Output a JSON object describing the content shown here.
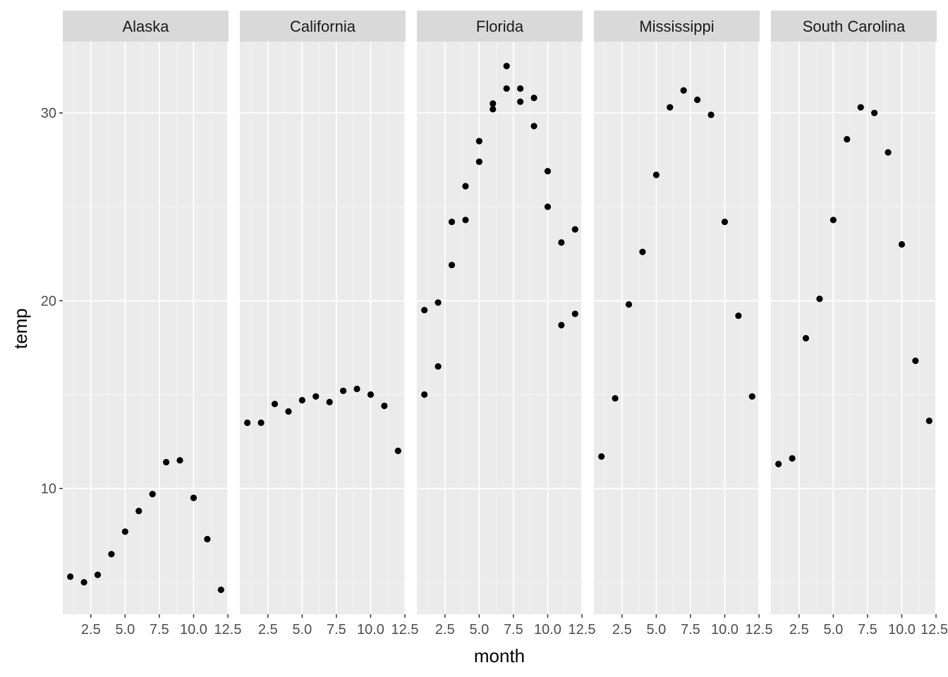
{
  "chart_data": {
    "type": "scatter",
    "facet": "state",
    "xlabel": "month",
    "ylabel": "temp",
    "xlim": [
      0.45,
      12.55
    ],
    "ylim": [
      3.3,
      33.8
    ],
    "x_ticks": [
      2.5,
      5.0,
      7.5,
      10.0,
      12.5
    ],
    "x_tick_labels": [
      "2.5",
      "5.0",
      "7.5",
      "10.0",
      "12.5"
    ],
    "y_ticks": [
      10,
      20,
      30
    ],
    "y_tick_labels": [
      "10",
      "20",
      "30"
    ],
    "grid": true,
    "panels": [
      {
        "title": "Alaska",
        "points": [
          [
            1,
            5.3
          ],
          [
            2,
            5.0
          ],
          [
            3,
            5.4
          ],
          [
            4,
            6.5
          ],
          [
            5,
            7.7
          ],
          [
            6,
            8.8
          ],
          [
            7,
            9.7
          ],
          [
            8,
            11.4
          ],
          [
            9,
            11.5
          ],
          [
            10,
            9.5
          ],
          [
            11,
            7.3
          ],
          [
            12,
            4.6
          ]
        ]
      },
      {
        "title": "California",
        "points": [
          [
            1,
            13.5
          ],
          [
            2,
            13.5
          ],
          [
            3,
            14.5
          ],
          [
            4,
            14.1
          ],
          [
            5,
            14.7
          ],
          [
            6,
            14.9
          ],
          [
            7,
            14.6
          ],
          [
            8,
            15.2
          ],
          [
            9,
            15.3
          ],
          [
            10,
            15.0
          ],
          [
            11,
            14.4
          ],
          [
            12,
            12.0
          ]
        ]
      },
      {
        "title": "Florida",
        "points": [
          [
            1,
            19.5
          ],
          [
            1,
            15.0
          ],
          [
            2,
            19.9
          ],
          [
            2,
            16.5
          ],
          [
            3,
            24.2
          ],
          [
            3,
            21.9
          ],
          [
            4,
            26.1
          ],
          [
            4,
            24.3
          ],
          [
            5,
            28.5
          ],
          [
            5,
            27.4
          ],
          [
            6,
            30.5
          ],
          [
            6,
            30.2
          ],
          [
            7,
            32.5
          ],
          [
            7,
            31.3
          ],
          [
            8,
            31.3
          ],
          [
            8,
            30.6
          ],
          [
            9,
            30.8
          ],
          [
            9,
            29.3
          ],
          [
            10,
            26.9
          ],
          [
            10,
            25.0
          ],
          [
            11,
            23.1
          ],
          [
            11,
            18.7
          ],
          [
            12,
            23.8
          ],
          [
            12,
            19.3
          ]
        ]
      },
      {
        "title": "Mississippi",
        "points": [
          [
            1,
            11.7
          ],
          [
            2,
            14.8
          ],
          [
            3,
            19.8
          ],
          [
            4,
            22.6
          ],
          [
            5,
            26.7
          ],
          [
            6,
            30.3
          ],
          [
            7,
            31.2
          ],
          [
            8,
            30.7
          ],
          [
            9,
            29.9
          ],
          [
            10,
            24.2
          ],
          [
            11,
            19.2
          ],
          [
            12,
            14.9
          ]
        ]
      },
      {
        "title": "South Carolina",
        "points": [
          [
            1,
            11.3
          ],
          [
            2,
            11.6
          ],
          [
            3,
            18.0
          ],
          [
            4,
            20.1
          ],
          [
            5,
            24.3
          ],
          [
            6,
            28.6
          ],
          [
            7,
            30.3
          ],
          [
            8,
            30.0
          ],
          [
            9,
            27.9
          ],
          [
            10,
            23.0
          ],
          [
            11,
            16.8
          ],
          [
            12,
            13.6
          ]
        ]
      }
    ]
  }
}
